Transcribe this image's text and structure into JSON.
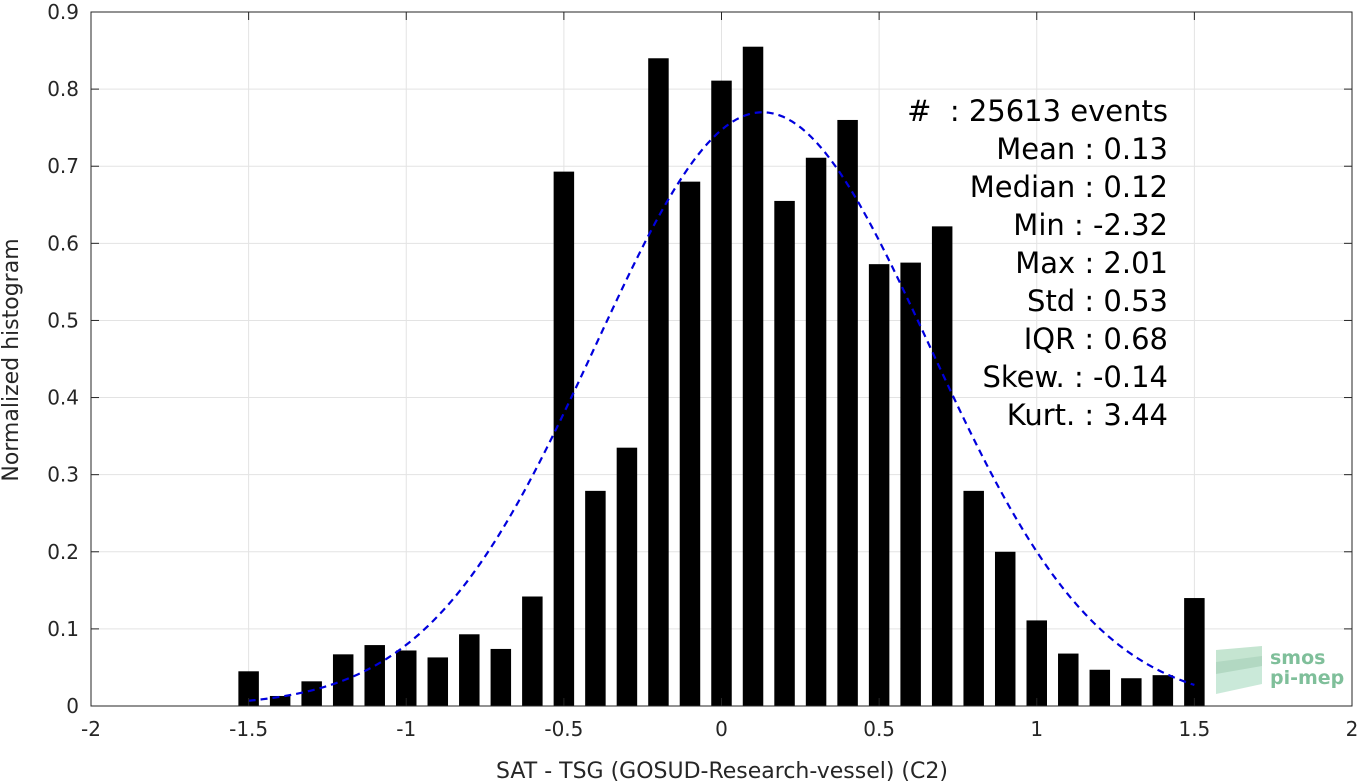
{
  "chart_data": {
    "type": "bar",
    "xlabel": "SAT - TSG (GOSUD-Research-vessel) (C2)",
    "ylabel": "Normalized histogram",
    "xlim": [
      -2,
      2
    ],
    "ylim": [
      0,
      0.9
    ],
    "xticks": [
      -2,
      -1.5,
      -1,
      -0.5,
      0,
      0.5,
      1,
      1.5,
      2
    ],
    "xtick_labels": [
      "-2",
      "-1.5",
      "-1",
      "-0.5",
      "0",
      "0.5",
      "1",
      "1.5",
      "2"
    ],
    "yticks": [
      0,
      0.1,
      0.2,
      0.3,
      0.4,
      0.5,
      0.6,
      0.7,
      0.8,
      0.9
    ],
    "ytick_labels": [
      "0",
      "0.1",
      "0.2",
      "0.3",
      "0.4",
      "0.5",
      "0.6",
      "0.7",
      "0.8",
      "0.9"
    ],
    "grid": true,
    "bar_color": "#000000",
    "curve_color": "#0000dd",
    "bins": [
      {
        "x": -1.5,
        "y": 0.045
      },
      {
        "x": -1.4,
        "y": 0.013
      },
      {
        "x": -1.3,
        "y": 0.032
      },
      {
        "x": -1.2,
        "y": 0.067
      },
      {
        "x": -1.1,
        "y": 0.079
      },
      {
        "x": -1.0,
        "y": 0.072
      },
      {
        "x": -0.9,
        "y": 0.063
      },
      {
        "x": -0.8,
        "y": 0.093
      },
      {
        "x": -0.7,
        "y": 0.074
      },
      {
        "x": -0.6,
        "y": 0.142
      },
      {
        "x": -0.5,
        "y": 0.693
      },
      {
        "x": -0.4,
        "y": 0.279
      },
      {
        "x": -0.3,
        "y": 0.335
      },
      {
        "x": -0.2,
        "y": 0.84
      },
      {
        "x": -0.1,
        "y": 0.68
      },
      {
        "x": 0.0,
        "y": 0.811
      },
      {
        "x": 0.1,
        "y": 0.855
      },
      {
        "x": 0.2,
        "y": 0.655
      },
      {
        "x": 0.3,
        "y": 0.711
      },
      {
        "x": 0.4,
        "y": 0.76
      },
      {
        "x": 0.5,
        "y": 0.573
      },
      {
        "x": 0.6,
        "y": 0.575
      },
      {
        "x": 0.7,
        "y": 0.622
      },
      {
        "x": 0.8,
        "y": 0.279
      },
      {
        "x": 0.9,
        "y": 0.2
      },
      {
        "x": 1.0,
        "y": 0.111
      },
      {
        "x": 1.1,
        "y": 0.068
      },
      {
        "x": 1.2,
        "y": 0.047
      },
      {
        "x": 1.3,
        "y": 0.036
      },
      {
        "x": 1.4,
        "y": 0.04
      },
      {
        "x": 1.5,
        "y": 0.14
      }
    ],
    "bar_width": 0.065,
    "fit_curve": {
      "type": "gaussian",
      "mean": 0.13,
      "std": 0.53,
      "peak": 0.77,
      "x_range": [
        -1.5,
        1.5
      ],
      "style": "dashed"
    },
    "annotations": [
      {
        "label": "#  ",
        "value": ": 25613 events"
      },
      {
        "label": "Mean ",
        "value": ": 0.13"
      },
      {
        "label": "Median ",
        "value": ": 0.12"
      },
      {
        "label": "Min ",
        "value": ": -2.32"
      },
      {
        "label": "Max ",
        "value": ": 2.01"
      },
      {
        "label": "Std ",
        "value": ": 0.53"
      },
      {
        "label": "IQR ",
        "value": ": 0.68"
      },
      {
        "label": "Skew. ",
        "value": ": -0.14"
      },
      {
        "label": "Kurt. ",
        "value": ": 3.44"
      }
    ]
  },
  "logo": {
    "line1": "smos",
    "line2": "pi-mep",
    "color": "#7fbf9a"
  }
}
